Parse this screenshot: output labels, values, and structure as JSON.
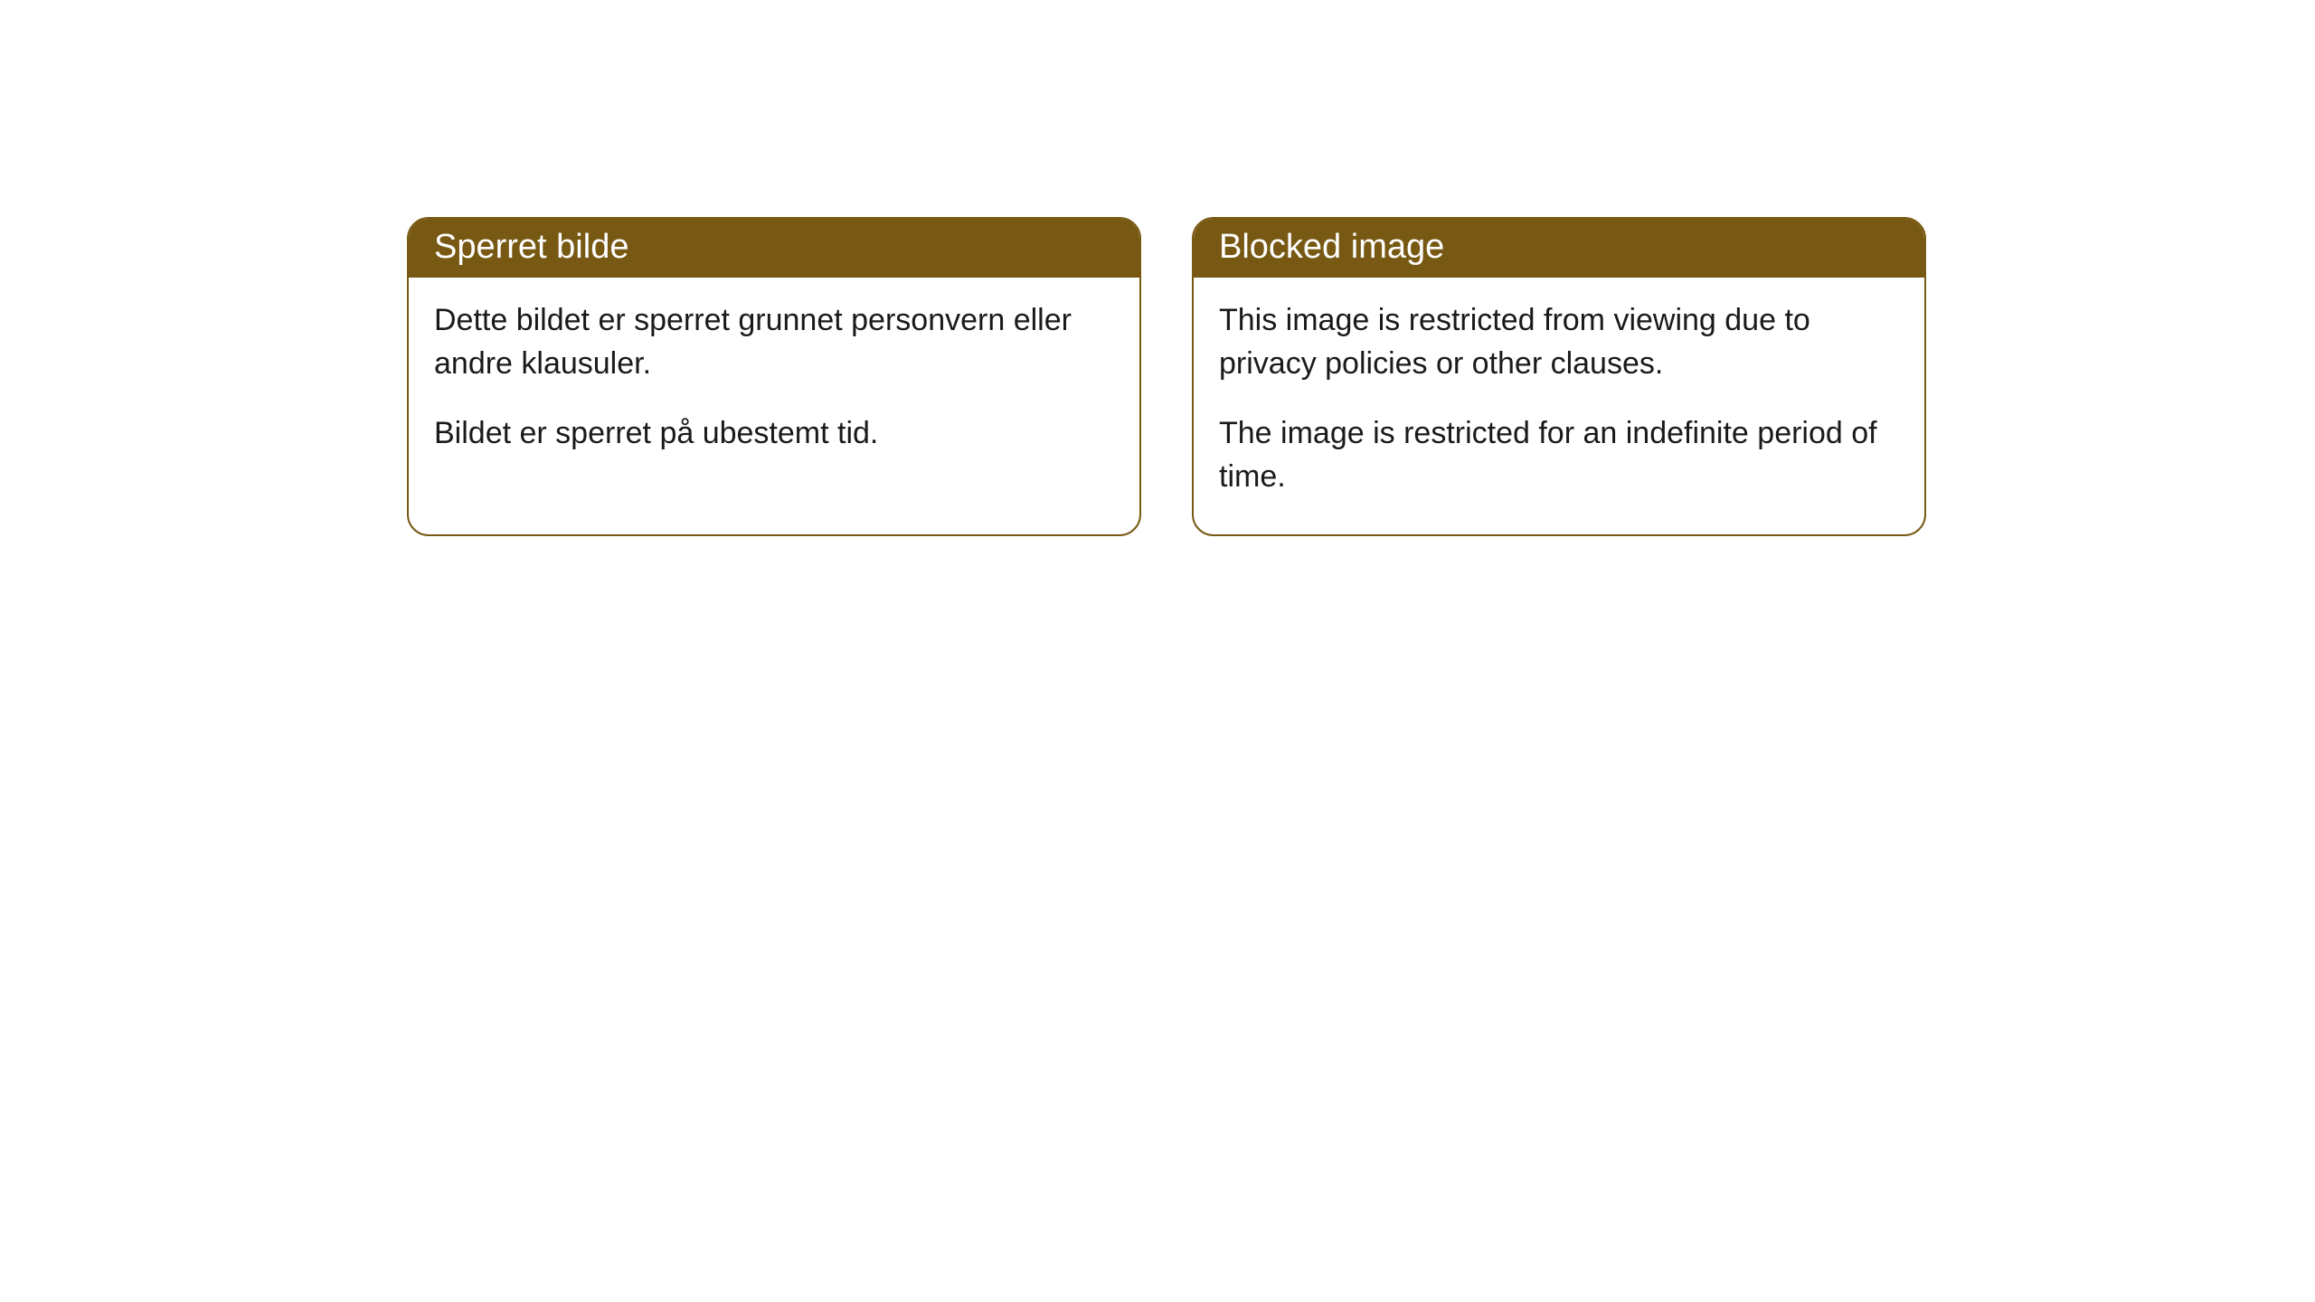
{
  "cards": [
    {
      "title": "Sperret bilde",
      "paragraph1": "Dette bildet er sperret grunnet personvern eller andre klausuler.",
      "paragraph2": "Bildet er sperret på ubestemt tid."
    },
    {
      "title": "Blocked image",
      "paragraph1": "This image is restricted from viewing due to privacy policies or other clauses.",
      "paragraph2": "The image is restricted for an indefinite period of time."
    }
  ],
  "style": {
    "header_background": "#785913",
    "header_text_color": "#ffffff",
    "border_color": "#785913",
    "body_background": "#ffffff",
    "body_text_color": "#1a1a1a",
    "border_radius": 24,
    "title_fontsize": 38,
    "body_fontsize": 34
  }
}
